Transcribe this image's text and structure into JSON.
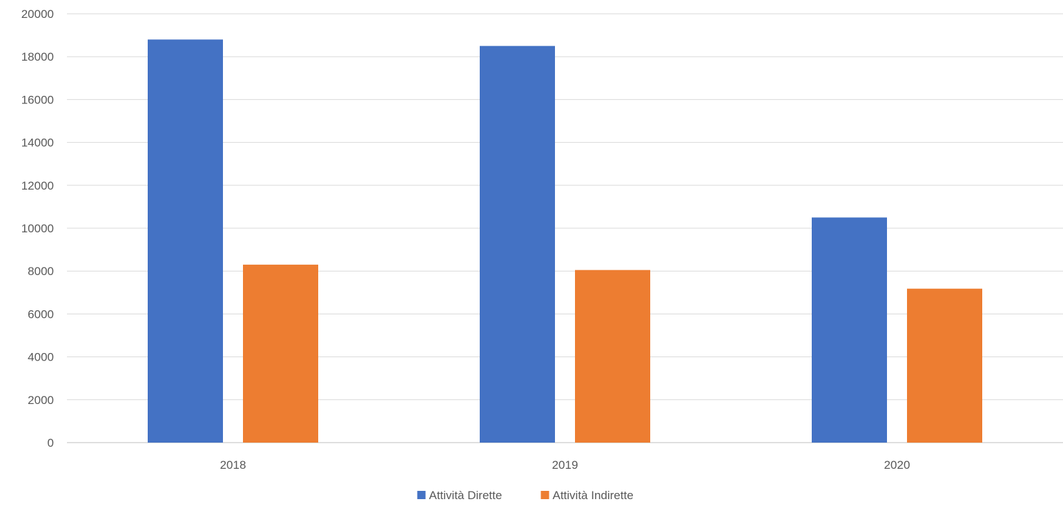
{
  "chart_data": {
    "type": "bar",
    "title": "",
    "xlabel": "",
    "ylabel": "",
    "categories": [
      "2018",
      "2019",
      "2020"
    ],
    "series": [
      {
        "name": "Attività Dirette",
        "values": [
          18800,
          18500,
          10500
        ],
        "color": "#4472C4"
      },
      {
        "name": "Attività Indirette",
        "values": [
          8300,
          8050,
          7180
        ],
        "color": "#ED7D31"
      }
    ],
    "ylim": [
      0,
      20000
    ],
    "yticks": [
      "0",
      "2000",
      "4000",
      "6000",
      "8000",
      "10000",
      "12000",
      "14000",
      "16000",
      "18000",
      "20000"
    ],
    "grid": true,
    "legend_position": "bottom"
  }
}
